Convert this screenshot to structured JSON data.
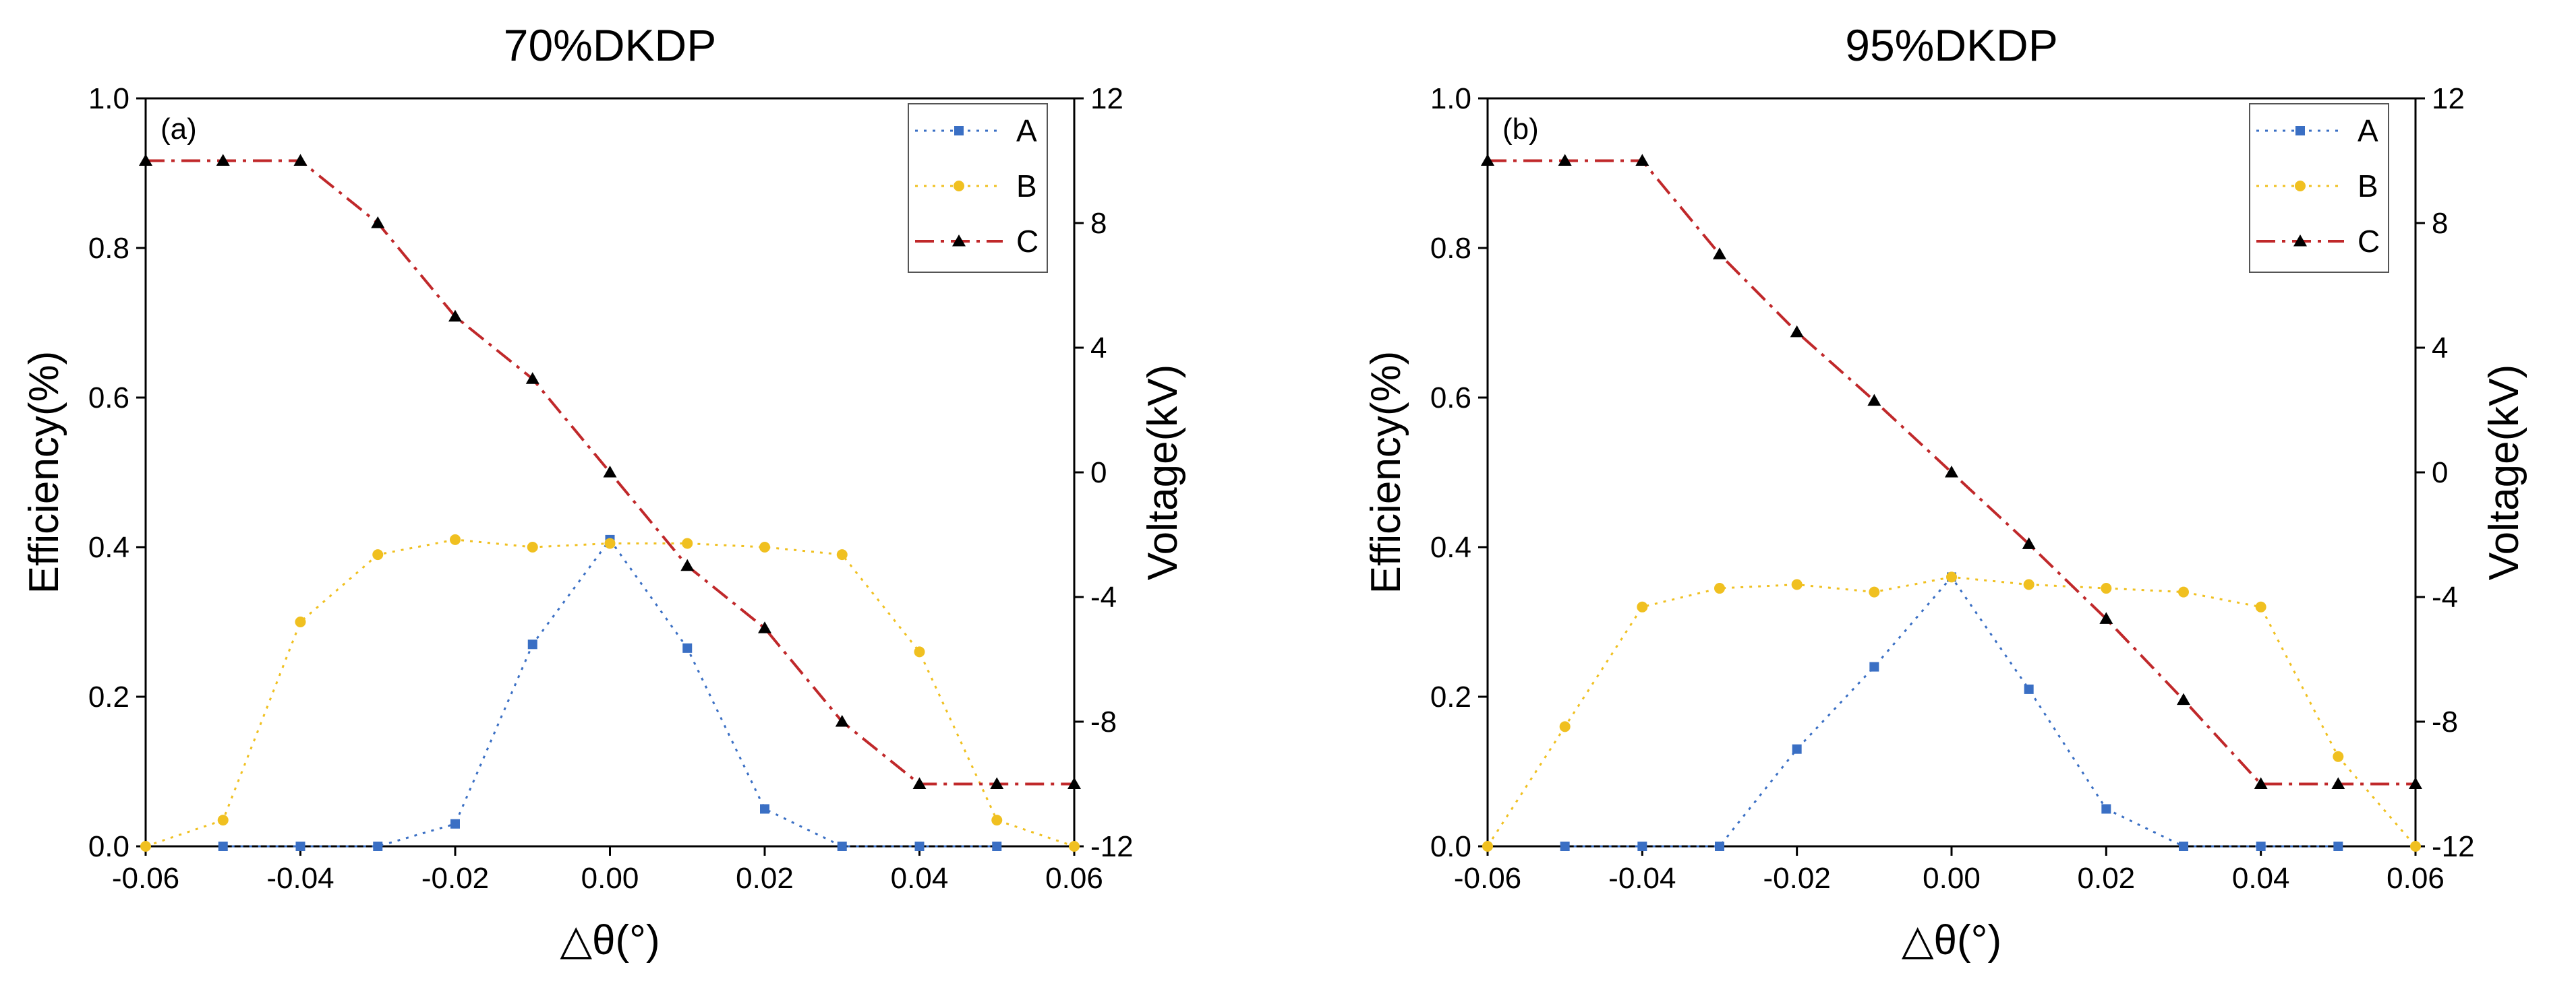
{
  "chart_data": [
    {
      "type": "line",
      "title": "70%DKDP",
      "panel_label": "(a)",
      "xlabel": "△θ(°)",
      "ylabel_left": "Efficiency(%)",
      "ylabel_right": "Voltage(kV)",
      "xlim": [
        -0.06,
        0.06
      ],
      "ylim_left": [
        0.0,
        1.0
      ],
      "ylim_right": [
        -12,
        12
      ],
      "x_ticks": [
        "-0.06",
        "-0.04",
        "-0.02",
        "0.00",
        "0.02",
        "0.04",
        "0.06"
      ],
      "y_ticks_left": [
        "0.0",
        "0.2",
        "0.4",
        "0.6",
        "0.8",
        "1.0"
      ],
      "y_ticks_right": [
        "-12",
        "-8",
        "-4",
        "0",
        "4",
        "8",
        "12"
      ],
      "legend_position": "top-right",
      "series": [
        {
          "name": "A",
          "axis": "left",
          "color": "#3a6fc4",
          "style": "dotted",
          "marker": "square",
          "x": [
            -0.05,
            -0.04,
            -0.03,
            -0.02,
            -0.01,
            0.0,
            0.01,
            0.02,
            0.03,
            0.04,
            0.05
          ],
          "y": [
            0.0,
            0.0,
            0.0,
            0.03,
            0.27,
            0.41,
            0.265,
            0.05,
            0.0,
            0.0,
            0.0
          ]
        },
        {
          "name": "B",
          "axis": "left",
          "color": "#f0c020",
          "style": "dotted",
          "marker": "circle",
          "x": [
            -0.06,
            -0.05,
            -0.04,
            -0.03,
            -0.02,
            -0.01,
            0.0,
            0.01,
            0.02,
            0.03,
            0.04,
            0.05,
            0.06
          ],
          "y": [
            0.0,
            0.035,
            0.3,
            0.39,
            0.41,
            0.4,
            0.405,
            0.405,
            0.4,
            0.39,
            0.26,
            0.035,
            0.0
          ]
        },
        {
          "name": "C",
          "axis": "right",
          "color": "#c0282a",
          "style": "dashdot",
          "marker": "triangle",
          "x": [
            -0.06,
            -0.05,
            -0.04,
            -0.03,
            -0.02,
            -0.01,
            0.0,
            0.01,
            0.02,
            0.03,
            0.04,
            0.05,
            0.06
          ],
          "y": [
            10,
            10,
            10,
            8,
            5,
            3,
            0,
            -3,
            -5,
            -8,
            -10,
            -10,
            -10
          ]
        }
      ]
    },
    {
      "type": "line",
      "title": "95%DKDP",
      "panel_label": "(b)",
      "xlabel": "△θ(°)",
      "ylabel_left": "Efficiency(%)",
      "ylabel_right": "Voltage(kV)",
      "xlim": [
        -0.06,
        0.06
      ],
      "ylim_left": [
        0.0,
        1.0
      ],
      "ylim_right": [
        -12,
        12
      ],
      "x_ticks": [
        "-0.06",
        "-0.04",
        "-0.02",
        "0.00",
        "0.02",
        "0.04",
        "0.06"
      ],
      "y_ticks_left": [
        "0.0",
        "0.2",
        "0.4",
        "0.6",
        "0.8",
        "1.0"
      ],
      "y_ticks_right": [
        "-12",
        "-8",
        "-4",
        "0",
        "4",
        "8",
        "12"
      ],
      "legend_position": "top-right",
      "series": [
        {
          "name": "A",
          "axis": "left",
          "color": "#3a6fc4",
          "style": "dotted",
          "marker": "square",
          "x": [
            -0.05,
            -0.04,
            -0.03,
            -0.02,
            -0.01,
            0.0,
            0.01,
            0.02,
            0.03,
            0.04,
            0.05
          ],
          "y": [
            0.0,
            0.0,
            0.0,
            0.13,
            0.24,
            0.36,
            0.21,
            0.05,
            0.0,
            0.0,
            0.0
          ]
        },
        {
          "name": "B",
          "axis": "left",
          "color": "#f0c020",
          "style": "dotted",
          "marker": "circle",
          "x": [
            -0.06,
            -0.05,
            -0.04,
            -0.03,
            -0.02,
            -0.01,
            0.0,
            0.01,
            0.02,
            0.03,
            0.04,
            0.05,
            0.06
          ],
          "y": [
            0.0,
            0.16,
            0.32,
            0.345,
            0.35,
            0.34,
            0.36,
            0.35,
            0.345,
            0.34,
            0.32,
            0.12,
            0.0
          ]
        },
        {
          "name": "C",
          "axis": "right",
          "color": "#c0282a",
          "style": "dashdot",
          "marker": "triangle",
          "x": [
            -0.06,
            -0.05,
            -0.04,
            -0.03,
            -0.02,
            -0.01,
            0.0,
            0.01,
            0.02,
            0.03,
            0.04,
            0.05,
            0.06
          ],
          "y": [
            10,
            10,
            10,
            7,
            4.5,
            2.3,
            0,
            -2.3,
            -4.7,
            -7.3,
            -10,
            -10,
            -10
          ]
        }
      ]
    }
  ]
}
